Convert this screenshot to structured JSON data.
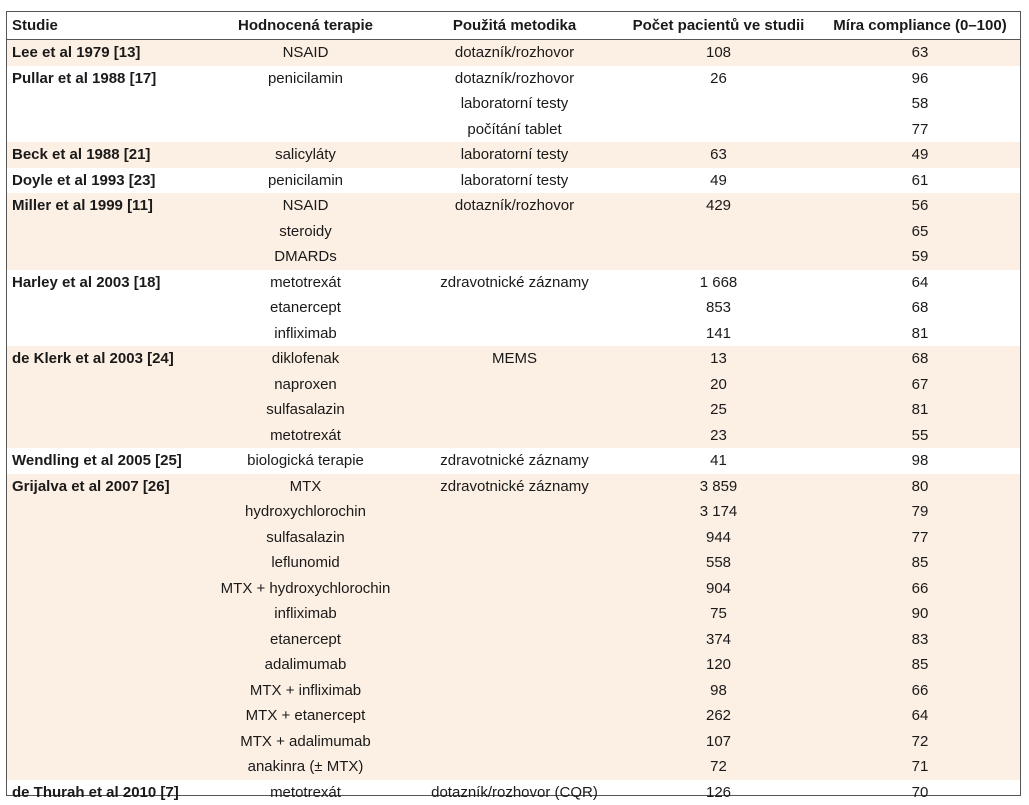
{
  "table": {
    "headers": {
      "study": "Studie",
      "therapy": "Hodnocená terapie",
      "method": "Použitá metodika",
      "count": "Počet pacientů ve studii",
      "rate": "Míra compliance (0–100)"
    },
    "groups": [
      {
        "shaded": true,
        "rows": [
          {
            "study": "Lee  et al 1979 [13]",
            "therapy": "NSAID",
            "method": "dotazník/rozhovor",
            "count": "108",
            "rate": "63"
          }
        ]
      },
      {
        "shaded": false,
        "rows": [
          {
            "study": "Pullar et al 1988 [17]",
            "therapy": "penicilamin",
            "method": "dotazník/rozhovor",
            "count": "26",
            "rate": "96"
          },
          {
            "study": "",
            "therapy": "",
            "method": "laboratorní testy",
            "count": "",
            "rate": "58"
          },
          {
            "study": "",
            "therapy": "",
            "method": "počítání tablet",
            "count": "",
            "rate": "77"
          }
        ]
      },
      {
        "shaded": true,
        "rows": [
          {
            "study": "Beck et al 1988 [21]",
            "therapy": "salicyláty",
            "method": "laboratorní testy",
            "count": "63",
            "rate": "49"
          }
        ]
      },
      {
        "shaded": false,
        "rows": [
          {
            "study": "Doyle et al 1993 [23]",
            "therapy": "penicilamin",
            "method": "laboratorní testy",
            "count": "49",
            "rate": "61"
          }
        ]
      },
      {
        "shaded": true,
        "rows": [
          {
            "study": "Miller et al 1999 [11]",
            "therapy": "NSAID",
            "method": "dotazník/rozhovor",
            "count": "429",
            "rate": "56"
          },
          {
            "study": "",
            "therapy": "steroidy",
            "method": "",
            "count": "",
            "rate": "65"
          },
          {
            "study": "",
            "therapy": "DMARDs",
            "method": "",
            "count": "",
            "rate": "59"
          }
        ]
      },
      {
        "shaded": false,
        "rows": [
          {
            "study": "Harley et al 2003 [18]",
            "therapy": "metotrexát",
            "method": "zdravotnické záznamy",
            "count": "1 668",
            "rate": "64"
          },
          {
            "study": "",
            "therapy": "etanercept",
            "method": "",
            "count": "853",
            "rate": "68"
          },
          {
            "study": "",
            "therapy": "infliximab",
            "method": "",
            "count": "141",
            "rate": "81"
          }
        ]
      },
      {
        "shaded": true,
        "rows": [
          {
            "study": "de Klerk et al 2003 [24]",
            "therapy": "diklofenak",
            "method": "MEMS",
            "count": "13",
            "rate": "68"
          },
          {
            "study": "",
            "therapy": "naproxen",
            "method": "",
            "count": "20",
            "rate": "67"
          },
          {
            "study": "",
            "therapy": "sulfasalazin",
            "method": "",
            "count": "25",
            "rate": "81"
          },
          {
            "study": "",
            "therapy": "metotrexát",
            "method": "",
            "count": "23",
            "rate": "55"
          }
        ]
      },
      {
        "shaded": false,
        "rows": [
          {
            "study": "Wendling et al 2005 [25]",
            "therapy": "biologická terapie",
            "method": "zdravotnické záznamy",
            "count": "41",
            "rate": "98"
          }
        ]
      },
      {
        "shaded": true,
        "rows": [
          {
            "study": "Grijalva et al 2007 [26]",
            "therapy": "MTX",
            "method": "zdravotnické záznamy",
            "count": "3 859",
            "rate": "80"
          },
          {
            "study": "",
            "therapy": "hydroxychlorochin",
            "method": "",
            "count": "3 174",
            "rate": "79"
          },
          {
            "study": "",
            "therapy": "sulfasalazin",
            "method": "",
            "count": "944",
            "rate": "77"
          },
          {
            "study": "",
            "therapy": "leflunomid",
            "method": "",
            "count": "558",
            "rate": "85"
          },
          {
            "study": "",
            "therapy": "MTX + hydroxychlorochin",
            "method": "",
            "count": "904",
            "rate": "66"
          },
          {
            "study": "",
            "therapy": "infliximab",
            "method": "",
            "count": "75",
            "rate": "90"
          },
          {
            "study": "",
            "therapy": "etanercept",
            "method": "",
            "count": "374",
            "rate": "83"
          },
          {
            "study": "",
            "therapy": "adalimumab",
            "method": "",
            "count": "120",
            "rate": "85"
          },
          {
            "study": "",
            "therapy": "MTX + infliximab",
            "method": "",
            "count": "98",
            "rate": "66"
          },
          {
            "study": "",
            "therapy": "MTX + etanercept",
            "method": "",
            "count": "262",
            "rate": "64"
          },
          {
            "study": "",
            "therapy": "MTX + adalimumab",
            "method": "",
            "count": "107",
            "rate": "72"
          },
          {
            "study": "",
            "therapy": "anakinra (± MTX)",
            "method": "",
            "count": "72",
            "rate": "71"
          }
        ]
      },
      {
        "shaded": false,
        "rows": [
          {
            "study": "de Thurah et al 2010 [7]",
            "therapy": "metotrexát",
            "method": "dotazník/rozhovor (CQR)",
            "count": "126",
            "rate": "70"
          }
        ]
      }
    ]
  }
}
